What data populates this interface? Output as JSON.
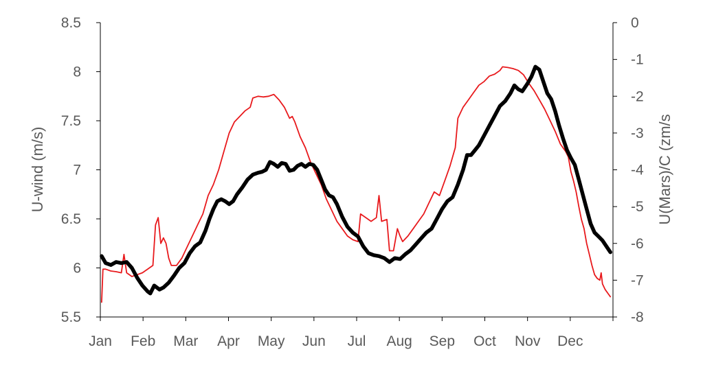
{
  "chart_data": {
    "type": "line",
    "title": "",
    "xlabel": "",
    "ylabel": "U-wind (m/s)",
    "y2label": "U(Mars)/C (zm/s",
    "categories": [
      "Jan",
      "Feb",
      "Mar",
      "Apr",
      "May",
      "Jun",
      "Jul",
      "Aug",
      "Sep",
      "Oct",
      "Nov",
      "Dec"
    ],
    "ylim": [
      5.5,
      8.5
    ],
    "y2lim": [
      -8,
      0
    ],
    "yticks": [
      "5.5",
      "6",
      "6.5",
      "7",
      "7.5",
      "8",
      "8.5"
    ],
    "y2ticks": [
      "-8",
      "-7",
      "-6",
      "-5",
      "-4",
      "-3",
      "-2",
      "-1",
      "0"
    ],
    "grid": false,
    "legend": "none",
    "series": [
      {
        "axis": "left",
        "color": "#000000",
        "points": [
          [
            1,
            6.12
          ],
          [
            4,
            6.05
          ],
          [
            8,
            6.03
          ],
          [
            12,
            6.06
          ],
          [
            16,
            6.05
          ],
          [
            20,
            6.06
          ],
          [
            24,
            6.0
          ],
          [
            28,
            5.9
          ],
          [
            32,
            5.82
          ],
          [
            36,
            5.76
          ],
          [
            38,
            5.74
          ],
          [
            41,
            5.82
          ],
          [
            45,
            5.78
          ],
          [
            48,
            5.8
          ],
          [
            52,
            5.85
          ],
          [
            56,
            5.92
          ],
          [
            60,
            6.0
          ],
          [
            64,
            6.05
          ],
          [
            68,
            6.15
          ],
          [
            72,
            6.22
          ],
          [
            76,
            6.26
          ],
          [
            80,
            6.38
          ],
          [
            83,
            6.5
          ],
          [
            86,
            6.6
          ],
          [
            89,
            6.68
          ],
          [
            92,
            6.7
          ],
          [
            95,
            6.68
          ],
          [
            98,
            6.65
          ],
          [
            101,
            6.68
          ],
          [
            104,
            6.75
          ],
          [
            108,
            6.82
          ],
          [
            112,
            6.9
          ],
          [
            116,
            6.95
          ],
          [
            120,
            6.97
          ],
          [
            123,
            6.98
          ],
          [
            126,
            7.0
          ],
          [
            129,
            7.08
          ],
          [
            132,
            7.06
          ],
          [
            135,
            7.03
          ],
          [
            138,
            7.07
          ],
          [
            141,
            7.06
          ],
          [
            144,
            6.99
          ],
          [
            147,
            7.0
          ],
          [
            150,
            7.04
          ],
          [
            153,
            7.06
          ],
          [
            156,
            7.03
          ],
          [
            159,
            7.06
          ],
          [
            162,
            7.05
          ],
          [
            165,
            7.0
          ],
          [
            168,
            6.9
          ],
          [
            171,
            6.8
          ],
          [
            174,
            6.74
          ],
          [
            177,
            6.72
          ],
          [
            180,
            6.65
          ],
          [
            184,
            6.52
          ],
          [
            188,
            6.42
          ],
          [
            192,
            6.36
          ],
          [
            196,
            6.32
          ],
          [
            200,
            6.22
          ],
          [
            204,
            6.15
          ],
          [
            208,
            6.13
          ],
          [
            212,
            6.12
          ],
          [
            216,
            6.1
          ],
          [
            220,
            6.06
          ],
          [
            224,
            6.1
          ],
          [
            228,
            6.09
          ],
          [
            232,
            6.14
          ],
          [
            236,
            6.18
          ],
          [
            240,
            6.24
          ],
          [
            244,
            6.3
          ],
          [
            248,
            6.36
          ],
          [
            252,
            6.4
          ],
          [
            256,
            6.5
          ],
          [
            260,
            6.6
          ],
          [
            264,
            6.68
          ],
          [
            268,
            6.72
          ],
          [
            272,
            6.85
          ],
          [
            276,
            7.0
          ],
          [
            279,
            7.15
          ],
          [
            282,
            7.15
          ],
          [
            285,
            7.2
          ],
          [
            288,
            7.25
          ],
          [
            292,
            7.35
          ],
          [
            296,
            7.45
          ],
          [
            300,
            7.55
          ],
          [
            304,
            7.65
          ],
          [
            308,
            7.7
          ],
          [
            312,
            7.78
          ],
          [
            315,
            7.86
          ],
          [
            318,
            7.82
          ],
          [
            321,
            7.8
          ],
          [
            325,
            7.88
          ],
          [
            328,
            7.95
          ],
          [
            331,
            8.05
          ],
          [
            334,
            8.02
          ],
          [
            337,
            7.9
          ],
          [
            340,
            7.78
          ],
          [
            343,
            7.72
          ],
          [
            346,
            7.6
          ],
          [
            349,
            7.45
          ],
          [
            352,
            7.32
          ],
          [
            355,
            7.2
          ],
          [
            358,
            7.12
          ],
          [
            361,
            7.05
          ],
          [
            364,
            6.9
          ],
          [
            367,
            6.75
          ],
          [
            370,
            6.6
          ],
          [
            373,
            6.45
          ],
          [
            376,
            6.36
          ],
          [
            379,
            6.32
          ],
          [
            382,
            6.28
          ],
          [
            385,
            6.22
          ],
          [
            388,
            6.16
          ]
        ]
      },
      {
        "axis": "right",
        "color": "#e8191c",
        "points": [
          [
            1,
            -7.6
          ],
          [
            2,
            -6.7
          ],
          [
            4,
            -6.7
          ],
          [
            8,
            -6.75
          ],
          [
            12,
            -6.77
          ],
          [
            16,
            -6.8
          ],
          [
            18,
            -6.3
          ],
          [
            20,
            -6.8
          ],
          [
            24,
            -6.9
          ],
          [
            28,
            -6.85
          ],
          [
            32,
            -6.8
          ],
          [
            36,
            -6.7
          ],
          [
            40,
            -6.6
          ],
          [
            42,
            -5.5
          ],
          [
            44,
            -5.3
          ],
          [
            46,
            -6.0
          ],
          [
            48,
            -5.85
          ],
          [
            50,
            -6.0
          ],
          [
            52,
            -6.4
          ],
          [
            54,
            -6.6
          ],
          [
            58,
            -6.6
          ],
          [
            62,
            -6.4
          ],
          [
            66,
            -6.1
          ],
          [
            70,
            -5.8
          ],
          [
            74,
            -5.5
          ],
          [
            78,
            -5.2
          ],
          [
            82,
            -4.7
          ],
          [
            86,
            -4.4
          ],
          [
            90,
            -4.0
          ],
          [
            94,
            -3.5
          ],
          [
            98,
            -3.0
          ],
          [
            102,
            -2.7
          ],
          [
            106,
            -2.55
          ],
          [
            110,
            -2.4
          ],
          [
            114,
            -2.3
          ],
          [
            116,
            -2.05
          ],
          [
            120,
            -2.0
          ],
          [
            124,
            -2.02
          ],
          [
            128,
            -2.0
          ],
          [
            132,
            -1.95
          ],
          [
            136,
            -2.1
          ],
          [
            140,
            -2.3
          ],
          [
            144,
            -2.6
          ],
          [
            146,
            -2.55
          ],
          [
            148,
            -2.7
          ],
          [
            152,
            -3.1
          ],
          [
            156,
            -3.4
          ],
          [
            160,
            -3.8
          ],
          [
            164,
            -4.1
          ],
          [
            168,
            -4.4
          ],
          [
            172,
            -4.8
          ],
          [
            176,
            -5.1
          ],
          [
            180,
            -5.4
          ],
          [
            184,
            -5.6
          ],
          [
            188,
            -5.8
          ],
          [
            192,
            -5.9
          ],
          [
            196,
            -5.95
          ],
          [
            198,
            -5.2
          ],
          [
            202,
            -5.3
          ],
          [
            206,
            -5.4
          ],
          [
            210,
            -5.3
          ],
          [
            212,
            -4.7
          ],
          [
            214,
            -5.4
          ],
          [
            218,
            -5.35
          ],
          [
            220,
            -6.2
          ],
          [
            223,
            -6.2
          ],
          [
            226,
            -5.6
          ],
          [
            228,
            -5.8
          ],
          [
            230,
            -5.95
          ],
          [
            234,
            -5.8
          ],
          [
            238,
            -5.6
          ],
          [
            242,
            -5.4
          ],
          [
            246,
            -5.2
          ],
          [
            250,
            -4.9
          ],
          [
            254,
            -4.6
          ],
          [
            258,
            -4.7
          ],
          [
            262,
            -4.3
          ],
          [
            266,
            -3.9
          ],
          [
            270,
            -3.4
          ],
          [
            272,
            -2.6
          ],
          [
            276,
            -2.3
          ],
          [
            280,
            -2.1
          ],
          [
            284,
            -1.9
          ],
          [
            288,
            -1.7
          ],
          [
            292,
            -1.6
          ],
          [
            296,
            -1.45
          ],
          [
            300,
            -1.4
          ],
          [
            304,
            -1.3
          ],
          [
            306,
            -1.2
          ],
          [
            310,
            -1.22
          ],
          [
            314,
            -1.25
          ],
          [
            318,
            -1.3
          ],
          [
            322,
            -1.42
          ],
          [
            326,
            -1.65
          ],
          [
            330,
            -1.85
          ],
          [
            334,
            -2.1
          ],
          [
            338,
            -2.35
          ],
          [
            342,
            -2.65
          ],
          [
            346,
            -2.95
          ],
          [
            350,
            -3.3
          ],
          [
            354,
            -3.5
          ],
          [
            356,
            -3.65
          ],
          [
            358,
            -4.05
          ],
          [
            360,
            -4.3
          ],
          [
            362,
            -4.6
          ],
          [
            364,
            -5.0
          ],
          [
            366,
            -5.35
          ],
          [
            368,
            -5.6
          ],
          [
            370,
            -6.0
          ],
          [
            372,
            -6.3
          ],
          [
            374,
            -6.6
          ],
          [
            376,
            -6.85
          ],
          [
            378,
            -6.95
          ],
          [
            380,
            -7.0
          ],
          [
            381,
            -6.8
          ],
          [
            382,
            -7.1
          ],
          [
            384,
            -7.25
          ],
          [
            386,
            -7.35
          ],
          [
            388,
            -7.45
          ]
        ]
      }
    ]
  }
}
